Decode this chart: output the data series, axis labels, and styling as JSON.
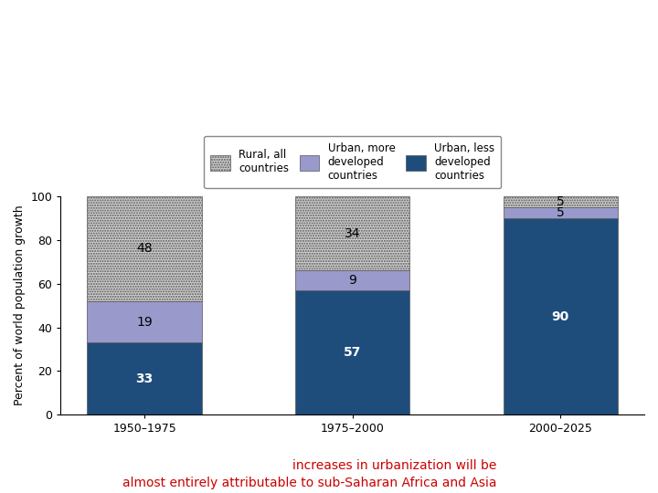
{
  "categories": [
    "1950–1975",
    "1975–2000",
    "2000–2025"
  ],
  "urban_less": [
    33,
    57,
    90
  ],
  "urban_more": [
    19,
    9,
    5
  ],
  "rural": [
    48,
    34,
    5
  ],
  "urban_less_color": "#1e4d7b",
  "urban_more_color": "#9999cc",
  "rural_color": "#d0d0d0",
  "ylabel": "Percent of world population growth",
  "ylim": [
    0,
    100
  ],
  "yticks": [
    0,
    20,
    40,
    60,
    80,
    100
  ],
  "legend_labels": [
    "Rural, all\ncountries",
    "Urban, more\ndeveloped\ncountries",
    "Urban, less\ndeveloped\ncountries"
  ],
  "caption_line1": "increases in urbanization will be",
  "caption_line2": "almost entirely attributable to sub-Saharan Africa and Asia",
  "caption_color": "#cc0000",
  "bar_width": 0.55,
  "label_fontsize": 10,
  "tick_fontsize": 9
}
